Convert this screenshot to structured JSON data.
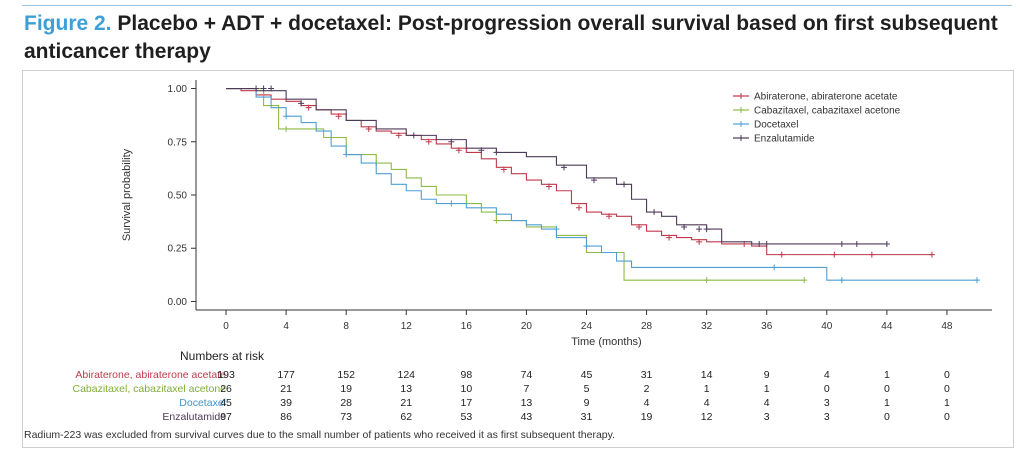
{
  "figure": {
    "label": "Figure 2.",
    "title": "Placebo + ADT + docetaxel: Post-progression overall survival based on first subsequent anticancer therapy"
  },
  "chart_data": {
    "type": "line",
    "style": "kaplan-meier step",
    "xlabel": "Time (months)",
    "ylabel": "Survival probability",
    "xlim": [
      -2,
      51
    ],
    "ylim": [
      -0.04,
      1.04
    ],
    "xticks": [
      0,
      4,
      8,
      12,
      16,
      20,
      24,
      28,
      32,
      36,
      40,
      44,
      48
    ],
    "yticks": [
      0.0,
      0.25,
      0.5,
      0.75,
      1.0
    ],
    "ytick_labels": [
      "0.00",
      "0.25",
      "0.50",
      "0.75",
      "1.00"
    ],
    "legend_position": "top-right",
    "series": [
      {
        "name": "Abiraterone, abiraterone acetate",
        "color": "#c0394b",
        "x": [
          0,
          1,
          2,
          3,
          4,
          5,
          6,
          7,
          8,
          9,
          10,
          11,
          12,
          13,
          14,
          15,
          16,
          17,
          18,
          19,
          20,
          21,
          22,
          23,
          24,
          25,
          26,
          27,
          28,
          29,
          30,
          31,
          32,
          33,
          34,
          35,
          36,
          38,
          40,
          42,
          44,
          47
        ],
        "y": [
          1.0,
          0.99,
          0.97,
          0.95,
          0.94,
          0.92,
          0.9,
          0.88,
          0.85,
          0.82,
          0.8,
          0.79,
          0.78,
          0.76,
          0.74,
          0.72,
          0.7,
          0.67,
          0.63,
          0.6,
          0.57,
          0.55,
          0.52,
          0.46,
          0.42,
          0.41,
          0.4,
          0.36,
          0.33,
          0.31,
          0.3,
          0.29,
          0.28,
          0.27,
          0.27,
          0.26,
          0.22,
          0.22,
          0.22,
          0.22,
          0.22,
          0.22
        ],
        "censors": [
          [
            2.5,
            0.97
          ],
          [
            5.5,
            0.91
          ],
          [
            7.5,
            0.87
          ],
          [
            9.5,
            0.81
          ],
          [
            11.5,
            0.78
          ],
          [
            13.5,
            0.75
          ],
          [
            15.5,
            0.71
          ],
          [
            18.5,
            0.62
          ],
          [
            21.5,
            0.54
          ],
          [
            23.5,
            0.44
          ],
          [
            25.5,
            0.4
          ],
          [
            27.5,
            0.35
          ],
          [
            29.5,
            0.3
          ],
          [
            31.5,
            0.28
          ],
          [
            34.5,
            0.27
          ],
          [
            37,
            0.22
          ],
          [
            40.5,
            0.22
          ],
          [
            43,
            0.22
          ],
          [
            47,
            0.22
          ]
        ]
      },
      {
        "name": "Cabazitaxel, cabazitaxel acetone",
        "color": "#8dbb45",
        "x": [
          0,
          2.5,
          3.5,
          6.5,
          8,
          10,
          11,
          12,
          13,
          14,
          16,
          17,
          18,
          20,
          22,
          24,
          26.5,
          38.5
        ],
        "y": [
          1.0,
          0.92,
          0.81,
          0.77,
          0.69,
          0.65,
          0.62,
          0.58,
          0.54,
          0.5,
          0.46,
          0.42,
          0.38,
          0.35,
          0.31,
          0.23,
          0.1,
          0.1
        ],
        "censors": [
          [
            4,
            0.81
          ],
          [
            10,
            0.65
          ],
          [
            18,
            0.38
          ],
          [
            32,
            0.1
          ],
          [
            38.5,
            0.1
          ]
        ]
      },
      {
        "name": "Docetaxel",
        "color": "#4f9fd3",
        "x": [
          0,
          2,
          3,
          4,
          5,
          6,
          7,
          8,
          9,
          10,
          11,
          12,
          13,
          14,
          16,
          18,
          19,
          20,
          21,
          22,
          24,
          25,
          26,
          27,
          40,
          50
        ],
        "y": [
          1.0,
          0.96,
          0.91,
          0.87,
          0.84,
          0.8,
          0.73,
          0.69,
          0.65,
          0.6,
          0.55,
          0.52,
          0.48,
          0.46,
          0.44,
          0.41,
          0.38,
          0.36,
          0.34,
          0.3,
          0.26,
          0.23,
          0.19,
          0.16,
          0.1,
          0.1
        ],
        "censors": [
          [
            4,
            0.87
          ],
          [
            8,
            0.69
          ],
          [
            15,
            0.46
          ],
          [
            22,
            0.34
          ],
          [
            24,
            0.26
          ],
          [
            36.5,
            0.16
          ],
          [
            41,
            0.1
          ],
          [
            50,
            0.1
          ]
        ]
      },
      {
        "name": "Enzalutamide",
        "color": "#4d3a57",
        "x": [
          0,
          2,
          4,
          6,
          8,
          10,
          12,
          14,
          16,
          18,
          20,
          22,
          24,
          26,
          27,
          28,
          29,
          30,
          32,
          33,
          35,
          37,
          40,
          44
        ],
        "y": [
          1.0,
          0.99,
          0.95,
          0.9,
          0.85,
          0.81,
          0.78,
          0.76,
          0.72,
          0.7,
          0.68,
          0.64,
          0.58,
          0.55,
          0.48,
          0.42,
          0.4,
          0.36,
          0.34,
          0.28,
          0.27,
          0.27,
          0.27,
          0.27
        ],
        "censors": [
          [
            2,
            1.0
          ],
          [
            2.5,
            1.0
          ],
          [
            3,
            1.0
          ],
          [
            5,
            0.93
          ],
          [
            12.5,
            0.78
          ],
          [
            15,
            0.75
          ],
          [
            17,
            0.71
          ],
          [
            18,
            0.7
          ],
          [
            22.5,
            0.63
          ],
          [
            24.5,
            0.57
          ],
          [
            26.5,
            0.55
          ],
          [
            28.5,
            0.42
          ],
          [
            30.5,
            0.35
          ],
          [
            31.5,
            0.34
          ],
          [
            32,
            0.34
          ],
          [
            35.5,
            0.27
          ],
          [
            36,
            0.27
          ],
          [
            41,
            0.27
          ],
          [
            42,
            0.27
          ],
          [
            44,
            0.27
          ]
        ]
      }
    ]
  },
  "risk_table": {
    "title": "Numbers at risk",
    "rows": [
      {
        "label": "Abiraterone, abiraterone acetate",
        "color": "#c0394b",
        "values": [
          "193",
          "177",
          "152",
          "124",
          "98",
          "74",
          "45",
          "31",
          "14",
          "9",
          "4",
          "1",
          "0"
        ]
      },
      {
        "label": "Cabazitaxel, cabazitaxel acetone",
        "color": "#7fae34",
        "values": [
          "26",
          "21",
          "19",
          "13",
          "10",
          "7",
          "5",
          "2",
          "1",
          "1",
          "0",
          "0",
          "0"
        ]
      },
      {
        "label": "Docetaxel",
        "color": "#3f93cc",
        "values": [
          "45",
          "39",
          "28",
          "21",
          "17",
          "13",
          "9",
          "4",
          "4",
          "4",
          "3",
          "1",
          "1"
        ]
      },
      {
        "label": "Enzalutamide",
        "color": "#4d3a57",
        "values": [
          "97",
          "86",
          "73",
          "62",
          "53",
          "43",
          "31",
          "19",
          "12",
          "3",
          "3",
          "0",
          "0"
        ]
      }
    ]
  },
  "footnote": "Radium-223 was excluded from survival curves due to the small number of patients who received it as first subsequent therapy."
}
